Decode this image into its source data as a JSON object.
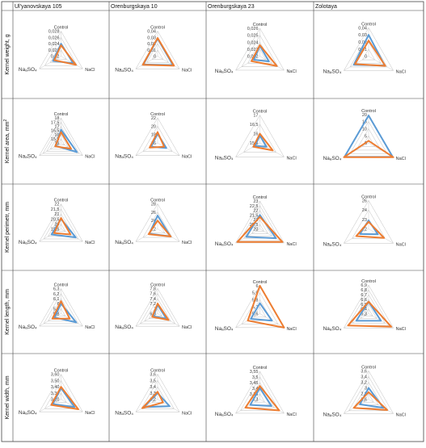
{
  "columns": [
    "Ul'yanovskaya 105",
    "Orenburgskaya 10",
    "Orenburgskaya 23",
    "Zolotaya"
  ],
  "rows": [
    "Kernel weight, g",
    "Kernel area, mm",
    "Kernel perimetr, mm",
    "Kernel length, mm",
    "Kernel width, mm"
  ],
  "row_label_superscripts": [
    "",
    "2",
    "",
    "",
    ""
  ],
  "colors": {
    "series_a": "#5b9bd5",
    "series_b": "#ed7d31",
    "grid": "#bfbfbf",
    "border": "#444444"
  },
  "chart_data": [
    {
      "type": "radar",
      "row": 0,
      "col": 0,
      "axes": [
        "Control",
        "NaCl",
        "NaₐSO₄"
      ],
      "ticks": [
        "0,028",
        "0,026",
        "0,024",
        "0,022",
        "0,02"
      ],
      "range": [
        0.02,
        0.028
      ],
      "series": [
        {
          "values": [
            0.024,
            0.0245,
            0.023
          ]
        },
        {
          "values": [
            0.0235,
            0.0255,
            0.0225
          ]
        }
      ]
    },
    {
      "type": "radar",
      "row": 0,
      "col": 1,
      "axes": [
        "Control",
        "NaCl",
        "NaₐSO₄"
      ],
      "ticks": [
        "0,04",
        "0,03",
        "0,02",
        "0,01",
        "0"
      ],
      "range": [
        0,
        0.04
      ],
      "series": [
        {
          "values": [
            0.028,
            0.028,
            0.026
          ]
        },
        {
          "values": [
            0.029,
            0.03,
            0.027
          ]
        }
      ]
    },
    {
      "type": "radar",
      "row": 0,
      "col": 2,
      "axes": [
        "Control",
        "NaCl",
        "NaₐSO₄"
      ],
      "ticks": [
        "0,026",
        "0,025",
        "0,024",
        "0,023",
        "0,022"
      ],
      "range": [
        0.022,
        0.026
      ],
      "series": [
        {
          "values": [
            0.0235,
            0.0235,
            0.023
          ]
        },
        {
          "values": [
            0.0236,
            0.0248,
            0.0234
          ]
        }
      ]
    },
    {
      "type": "radar",
      "row": 0,
      "col": 3,
      "axes": [
        "Control",
        "NaCl",
        "NaₐSO₄"
      ],
      "ticks": [
        "0,04",
        "0,03",
        "0,02",
        "0,01",
        "0"
      ],
      "range": [
        0,
        0.04
      ],
      "series": [
        {
          "values": [
            0.03,
            0.026,
            0.024
          ]
        },
        {
          "values": [
            0.022,
            0.027,
            0.022
          ]
        }
      ]
    },
    {
      "type": "radar",
      "row": 1,
      "col": 0,
      "axes": [
        "Control",
        "NaCl",
        "NaₐSO₄"
      ],
      "ticks": [
        "18",
        "17,5",
        "17",
        "16,5",
        "16",
        "15,5",
        "15"
      ],
      "range": [
        15,
        18
      ],
      "series": [
        {
          "values": [
            16.6,
            17.2,
            15.7
          ]
        },
        {
          "values": [
            16.3,
            16.4,
            15.8
          ]
        }
      ]
    },
    {
      "type": "radar",
      "row": 1,
      "col": 1,
      "axes": [
        "Control",
        "NaCl",
        "NaₐSO₄"
      ],
      "ticks": [
        "22",
        "20",
        "18",
        "16"
      ],
      "range": [
        16,
        22
      ],
      "series": [
        {
          "values": [
            18.2,
            18.4,
            17.8
          ]
        },
        {
          "values": [
            18.6,
            17.8,
            18.2
          ]
        }
      ]
    },
    {
      "type": "radar",
      "row": 1,
      "col": 2,
      "axes": [
        "Control",
        "NaCl",
        "NaₐSO₄"
      ],
      "ticks": [
        "17",
        "16,5",
        "16",
        "15,5"
      ],
      "range": [
        15.5,
        17
      ],
      "series": [
        {
          "values": [
            15.9,
            15.9,
            15.8
          ]
        },
        {
          "values": [
            16.0,
            16.3,
            15.9
          ]
        }
      ]
    },
    {
      "type": "radar",
      "row": 1,
      "col": 3,
      "axes": [
        "Control",
        "NaCl",
        "NaₐSO₄"
      ],
      "ticks": [
        "20",
        "15",
        "10",
        "5",
        "0"
      ],
      "range": [
        0,
        20
      ],
      "series": [
        {
          "values": [
            19.2,
            19.5,
            19.5
          ]
        },
        {
          "values": [
            1.5,
            20,
            20
          ]
        }
      ]
    },
    {
      "type": "radar",
      "row": 2,
      "col": 0,
      "axes": [
        "Control",
        "NaCl",
        "NaₐSO₄"
      ],
      "ticks": [
        "22",
        "21,5",
        "21",
        "20,5",
        "20",
        "19,5"
      ],
      "range": [
        19.5,
        22
      ],
      "series": [
        {
          "values": [
            20.5,
            21.2,
            20.6
          ]
        },
        {
          "values": [
            20.6,
            20.6,
            20.3
          ]
        }
      ]
    },
    {
      "type": "radar",
      "row": 2,
      "col": 1,
      "axes": [
        "Control",
        "NaCl",
        "NaₐSO₄"
      ],
      "ticks": [
        "28",
        "26",
        "24",
        "22"
      ],
      "range": [
        22,
        28
      ],
      "series": [
        {
          "values": [
            25.2,
            25.5,
            24.3
          ]
        },
        {
          "values": [
            24.0,
            25.6,
            24.5
          ]
        }
      ]
    },
    {
      "type": "radar",
      "row": 2,
      "col": 2,
      "axes": [
        "Control",
        "NaCl",
        "NaₐSO₄"
      ],
      "ticks": [
        "23",
        "22,5",
        "22",
        "21,5",
        "21",
        "20,5",
        "20"
      ],
      "range": [
        20,
        23
      ],
      "series": [
        {
          "values": [
            21.5,
            22.0,
            21.7
          ]
        },
        {
          "values": [
            21.3,
            22.8,
            22.8
          ]
        }
      ]
    },
    {
      "type": "radar",
      "row": 2,
      "col": 3,
      "axes": [
        "Control",
        "NaCl",
        "NaₐSO₄"
      ],
      "ticks": [
        "26",
        "24",
        "23",
        "22"
      ],
      "range": [
        22,
        26
      ],
      "series": [
        {
          "values": [
            23.2,
            23.5,
            23.4
          ]
        },
        {
          "values": [
            23.0,
            24.5,
            24.0
          ]
        }
      ]
    },
    {
      "type": "radar",
      "row": 3,
      "col": 0,
      "axes": [
        "Control",
        "NaCl",
        "NaₐSO₄"
      ],
      "ticks": [
        "6,3",
        "6,2",
        "6,1",
        "6",
        "5,9",
        "5,8"
      ],
      "range": [
        5.8,
        6.3
      ],
      "series": [
        {
          "values": [
            6.0,
            6.15,
            5.95
          ]
        },
        {
          "values": [
            6.05,
            6.0,
            6.0
          ]
        }
      ]
    },
    {
      "type": "radar",
      "row": 3,
      "col": 1,
      "axes": [
        "Control",
        "NaCl",
        "NaₐSO₄"
      ],
      "ticks": [
        "7,8",
        "7,6",
        "7,4",
        "7,2",
        "7",
        "6,8"
      ],
      "range": [
        6.8,
        7.8
      ],
      "series": [
        {
          "values": [
            7.15,
            7.2,
            7.0
          ]
        },
        {
          "values": [
            7.2,
            7.3,
            7.05
          ]
        }
      ]
    },
    {
      "type": "radar",
      "row": 3,
      "col": 2,
      "axes": [
        "Control",
        "NaCl",
        "NaₐSO₄"
      ],
      "ticks": [
        "6",
        "5,9",
        "5,8",
        "5,7",
        "5,6"
      ],
      "range": [
        5.6,
        6
      ],
      "series": [
        {
          "values": [
            5.75,
            5.8,
            5.75
          ]
        },
        {
          "values": [
            6.0,
            6.0,
            5.8
          ]
        }
      ]
    },
    {
      "type": "radar",
      "row": 3,
      "col": 3,
      "axes": [
        "Control",
        "NaCl",
        "NaₐSO₄"
      ],
      "ticks": [
        "6,9",
        "6,8",
        "6,7",
        "6,6",
        "6,5",
        "6,4",
        "6,3"
      ],
      "range": [
        6.3,
        6.9
      ],
      "series": [
        {
          "values": [
            6.55,
            6.6,
            6.6
          ]
        },
        {
          "values": [
            6.55,
            6.85,
            6.8
          ]
        }
      ]
    },
    {
      "type": "radar",
      "row": 4,
      "col": 0,
      "axes": [
        "Control",
        "NaCl",
        "NaₐSO₄"
      ],
      "ticks": [
        "3,60",
        "3,50",
        "3,40",
        "3,30",
        "3,20"
      ],
      "range": [
        3.2,
        3.6
      ],
      "series": [
        {
          "values": [
            3.38,
            3.45,
            3.35
          ]
        },
        {
          "values": [
            3.4,
            3.52,
            3.38
          ]
        }
      ]
    },
    {
      "type": "radar",
      "row": 4,
      "col": 1,
      "axes": [
        "Control",
        "NaCl",
        "NaₐSO₄"
      ],
      "ticks": [
        "3,6",
        "3,5",
        "3,4",
        "3,3",
        "3,2"
      ],
      "range": [
        3.2,
        3.6
      ],
      "series": [
        {
          "values": [
            3.3,
            3.42,
            3.45
          ]
        },
        {
          "values": [
            3.32,
            3.3,
            3.48
          ]
        }
      ]
    },
    {
      "type": "radar",
      "row": 4,
      "col": 2,
      "axes": [
        "Control",
        "NaCl",
        "NaₐSO₄"
      ],
      "ticks": [
        "3,55",
        "3,5",
        "3,45",
        "3,4",
        "3,35",
        "3,3"
      ],
      "range": [
        3.3,
        3.55
      ],
      "series": [
        {
          "values": [
            3.4,
            3.42,
            3.4
          ]
        },
        {
          "values": [
            3.42,
            3.5,
            3.45
          ]
        }
      ]
    },
    {
      "type": "radar",
      "row": 4,
      "col": 3,
      "axes": [
        "Control",
        "NaCl",
        "NaₐSO₄"
      ],
      "ticks": [
        "3,6",
        "3,4",
        "3,2",
        "3",
        "2,8",
        "2,6"
      ],
      "range": [
        2.6,
        3.6
      ],
      "series": [
        {
          "values": [
            3.0,
            3.2,
            2.95
          ]
        },
        {
          "values": [
            2.85,
            3.35,
            3.2
          ]
        }
      ]
    }
  ]
}
